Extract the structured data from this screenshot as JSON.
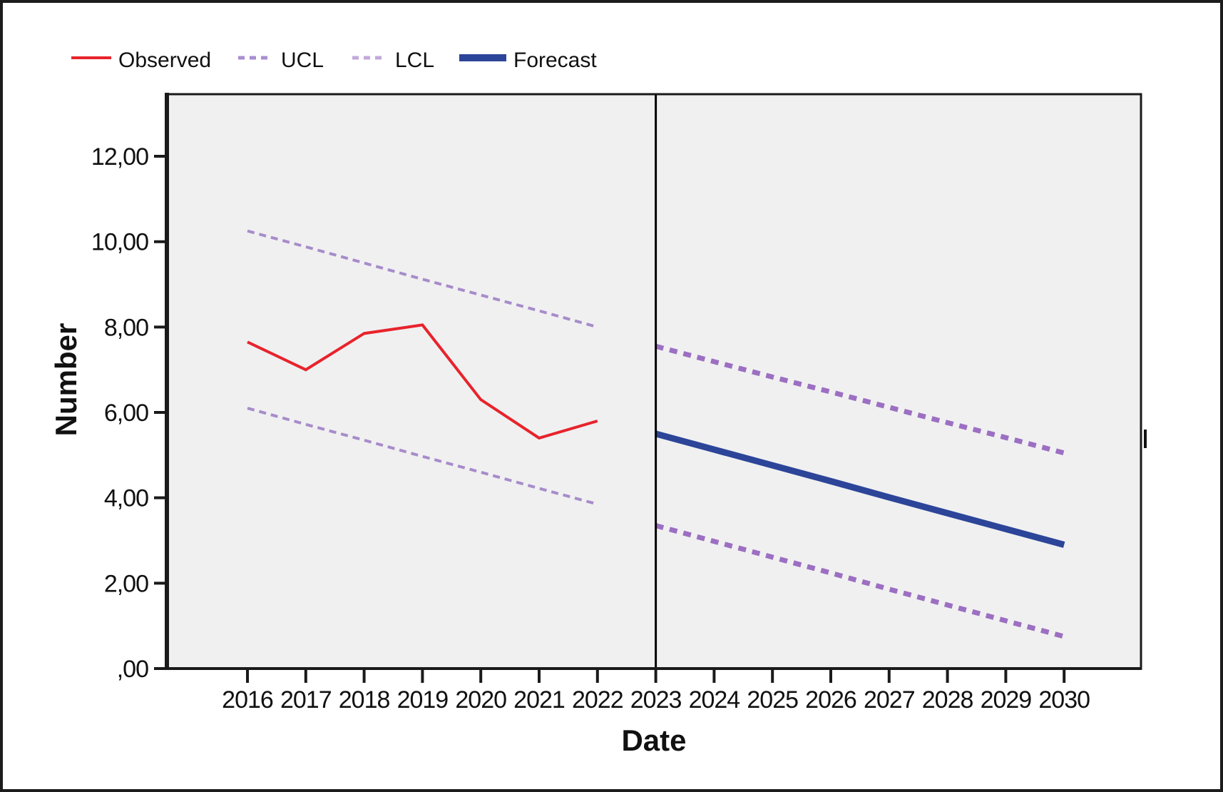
{
  "figure": {
    "border_color": "#1c1c1c",
    "background": "#ffffff",
    "plot_background": "#f0f0f1",
    "frame_color": "#1a1a1a",
    "separator_color": "#000000"
  },
  "legend": {
    "items": [
      {
        "label": "Observed",
        "style": "solid",
        "color": "#e8232b"
      },
      {
        "label": "UCL",
        "style": "dashed",
        "color": "#a98fd0"
      },
      {
        "label": "LCL",
        "style": "dashed",
        "color": "#c3a8dc"
      },
      {
        "label": "Forecast",
        "style": "solid",
        "color": "#2c4599"
      }
    ]
  },
  "axes": {
    "y": {
      "title": "Number",
      "tick_values": [
        0,
        2,
        4,
        6,
        8,
        10,
        12
      ],
      "tick_labels": [
        ",00",
        "2,00",
        "4,00",
        "6,00",
        "8,00",
        "10,00",
        "12,00"
      ]
    },
    "x": {
      "title": "Date",
      "tick_values": [
        2016,
        2017,
        2018,
        2019,
        2020,
        2021,
        2022,
        2023,
        2024,
        2025,
        2026,
        2027,
        2028,
        2029,
        2030
      ],
      "tick_labels": [
        "2016",
        "2017",
        "2018",
        "2019",
        "2020",
        "2021",
        "2022",
        "2023",
        "2024",
        "2025",
        "2026",
        "2027",
        "2028",
        "2029",
        "2030"
      ]
    }
  },
  "chart_data": {
    "type": "line",
    "title": "",
    "xlabel": "Date",
    "ylabel": "Number",
    "ylim": [
      0,
      13.45
    ],
    "grid": false,
    "legend_position": "top-left",
    "forecast_separator_x": 2023,
    "series": [
      {
        "name": "UCL (observed period)",
        "color": "#a78cc9",
        "style": "dashed",
        "stroke_width": 4,
        "dash": "10 7",
        "x": [
          2016,
          2017,
          2018,
          2019,
          2020,
          2021,
          2022
        ],
        "values": [
          10.25,
          9.88,
          9.5,
          9.12,
          8.75,
          8.38,
          8.0
        ]
      },
      {
        "name": "LCL (observed period)",
        "color": "#a78cc9",
        "style": "dashed",
        "stroke_width": 4,
        "dash": "10 7",
        "x": [
          2016,
          2017,
          2018,
          2019,
          2020,
          2021,
          2022
        ],
        "values": [
          6.1,
          5.72,
          5.35,
          4.97,
          4.6,
          4.22,
          3.85
        ]
      },
      {
        "name": "Observed",
        "color": "#e8232b",
        "style": "solid",
        "stroke_width": 4,
        "dash": "",
        "x": [
          2016,
          2017,
          2018,
          2019,
          2020,
          2021,
          2022
        ],
        "values": [
          7.65,
          7.0,
          7.85,
          8.05,
          6.3,
          5.4,
          5.8
        ]
      },
      {
        "name": "UCL (forecast period)",
        "color": "#9c6fc2",
        "style": "dashed",
        "stroke_width": 7,
        "dash": "11 9",
        "x": [
          2023,
          2024,
          2025,
          2026,
          2027,
          2028,
          2029,
          2030
        ],
        "values": [
          7.55,
          7.19,
          6.83,
          6.48,
          6.12,
          5.76,
          5.41,
          5.05
        ]
      },
      {
        "name": "LCL (forecast period)",
        "color": "#9c6fc2",
        "style": "dashed",
        "stroke_width": 7,
        "dash": "11 9",
        "x": [
          2023,
          2024,
          2025,
          2026,
          2027,
          2028,
          2029,
          2030
        ],
        "values": [
          3.35,
          2.98,
          2.61,
          2.24,
          1.86,
          1.49,
          1.12,
          0.75
        ]
      },
      {
        "name": "Forecast",
        "color": "#2c4599",
        "style": "solid",
        "stroke_width": 9,
        "dash": "",
        "x": [
          2023,
          2024,
          2025,
          2026,
          2027,
          2028,
          2029,
          2030
        ],
        "values": [
          5.5,
          5.13,
          4.76,
          4.39,
          4.01,
          3.64,
          3.27,
          2.9
        ]
      }
    ]
  }
}
